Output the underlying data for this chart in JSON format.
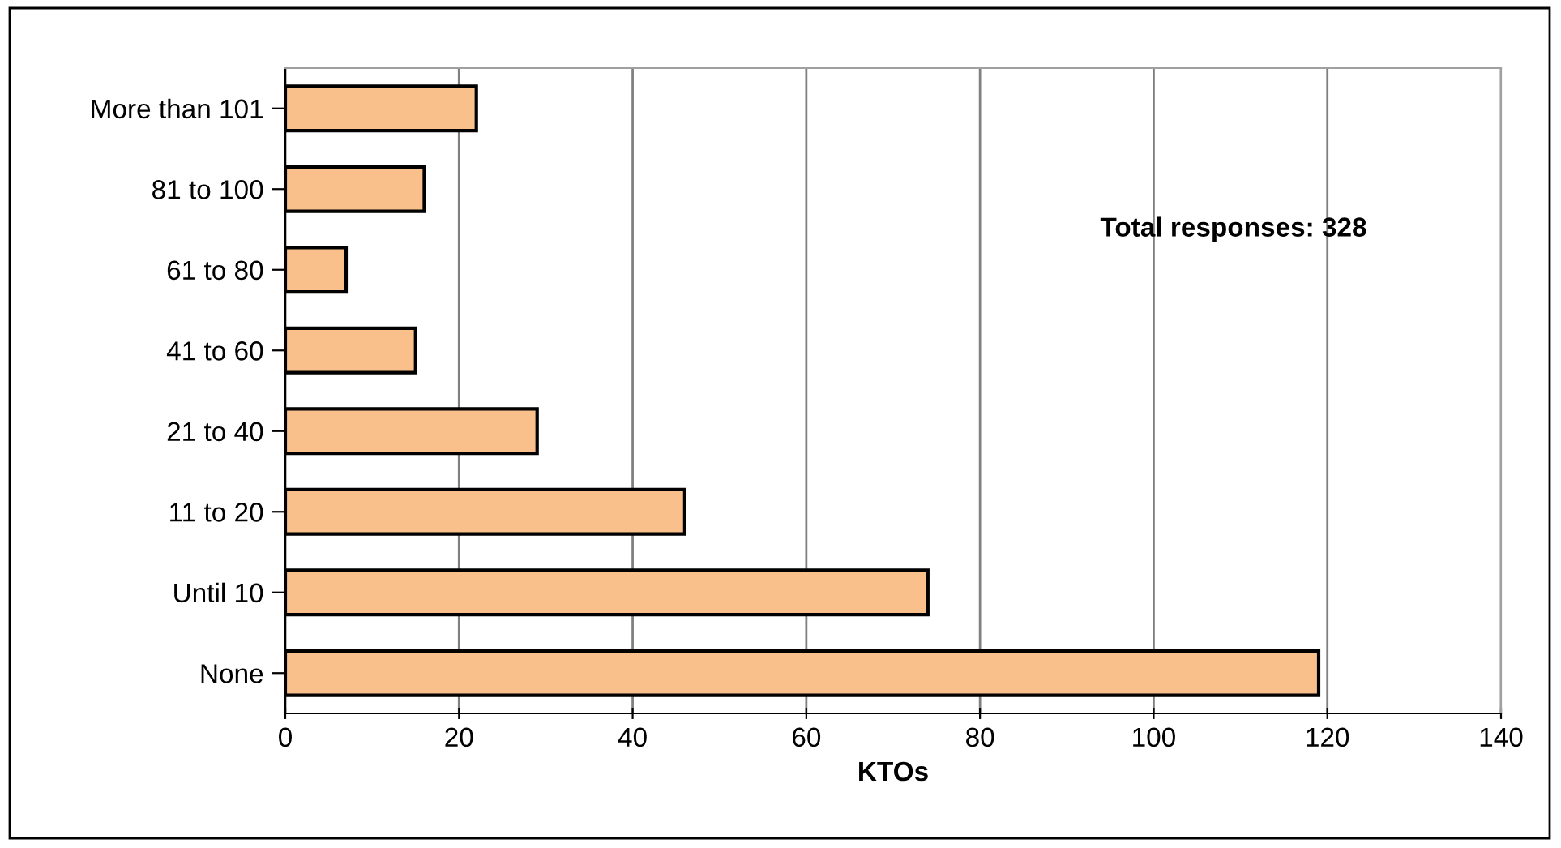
{
  "chart_data": {
    "type": "bar",
    "orientation": "horizontal",
    "categories": [
      "More than 101",
      "81 to 100",
      "61 to 80",
      "41 to 60",
      "21 to 40",
      "11 to 20",
      "Until 10",
      "None"
    ],
    "values": [
      22,
      16,
      7,
      15,
      29,
      46,
      74,
      119
    ],
    "color": "#f9c08c",
    "xlabel": "KTOs",
    "xlim": [
      0,
      140
    ],
    "xticks": [
      0,
      20,
      40,
      60,
      80,
      100,
      120,
      140
    ],
    "grid": "x",
    "annotations": [
      "Total responses: 328"
    ]
  }
}
